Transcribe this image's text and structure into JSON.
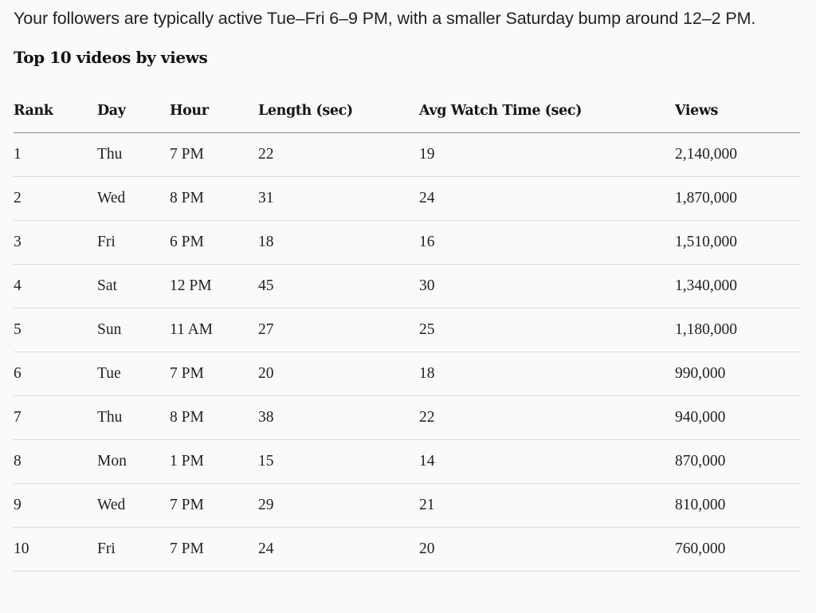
{
  "intro": "Your followers are typically active Tue–Fri 6–9 PM, with a smaller Saturday bump around 12–2 PM.",
  "section_title": "Top 10 videos by views",
  "table": {
    "headers": [
      "Rank",
      "Day",
      "Hour",
      "Length (sec)",
      "Avg Watch Time (sec)",
      "Views"
    ],
    "rows": [
      [
        "1",
        "Thu",
        "7 PM",
        "22",
        "19",
        "2,140,000"
      ],
      [
        "2",
        "Wed",
        "8 PM",
        "31",
        "24",
        "1,870,000"
      ],
      [
        "3",
        "Fri",
        "6 PM",
        "18",
        "16",
        "1,510,000"
      ],
      [
        "4",
        "Sat",
        "12 PM",
        "45",
        "30",
        "1,340,000"
      ],
      [
        "5",
        "Sun",
        "11 AM",
        "27",
        "25",
        "1,180,000"
      ],
      [
        "6",
        "Tue",
        "7 PM",
        "20",
        "18",
        "990,000"
      ],
      [
        "7",
        "Thu",
        "8 PM",
        "38",
        "22",
        "940,000"
      ],
      [
        "8",
        "Mon",
        "1 PM",
        "15",
        "14",
        "870,000"
      ],
      [
        "9",
        "Wed",
        "7 PM",
        "29",
        "21",
        "810,000"
      ],
      [
        "10",
        "Fri",
        "7 PM",
        "24",
        "20",
        "760,000"
      ]
    ]
  }
}
